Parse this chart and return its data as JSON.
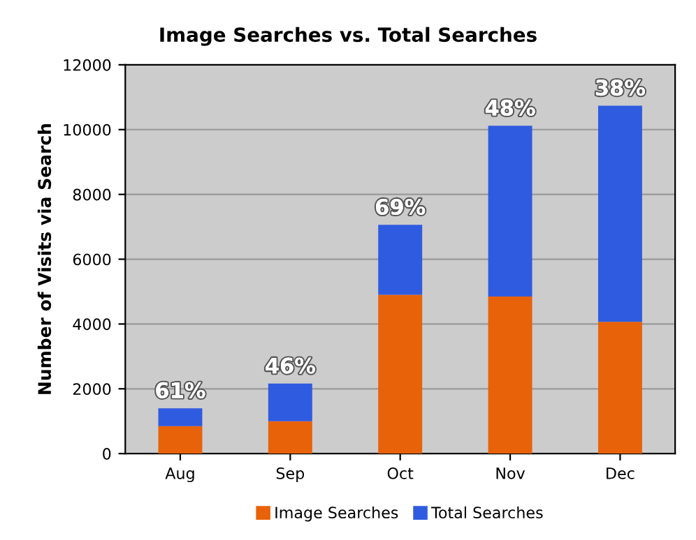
{
  "chart_data": {
    "type": "bar",
    "title": "Image Searches vs. Total Searches",
    "ylabel": "Number of Visits via Search",
    "categories": [
      "Aug",
      "Sep",
      "Oct",
      "Nov",
      "Dec"
    ],
    "stacked": true,
    "series": [
      {
        "name": "Image Searches",
        "color": "#e8620a",
        "values": [
          850,
          1000,
          4900,
          4850,
          4070
        ]
      },
      {
        "name": "Total Searches",
        "color": "#2f5be0",
        "values": [
          550,
          1160,
          2160,
          5270,
          6670
        ]
      }
    ],
    "annotations": [
      {
        "text": "61%",
        "x": "Aug",
        "y": 1400
      },
      {
        "text": "46%",
        "x": "Sep",
        "y": 2160
      },
      {
        "text": "69%",
        "x": "Oct",
        "y": 7060
      },
      {
        "text": "48%",
        "x": "Nov",
        "y": 10120
      },
      {
        "text": "38%",
        "x": "Dec",
        "y": 10740
      }
    ],
    "ylim": [
      0,
      12000
    ],
    "yticks": [
      0,
      2000,
      4000,
      6000,
      8000,
      10000,
      12000
    ],
    "grid": "y",
    "legend": "bottom"
  }
}
